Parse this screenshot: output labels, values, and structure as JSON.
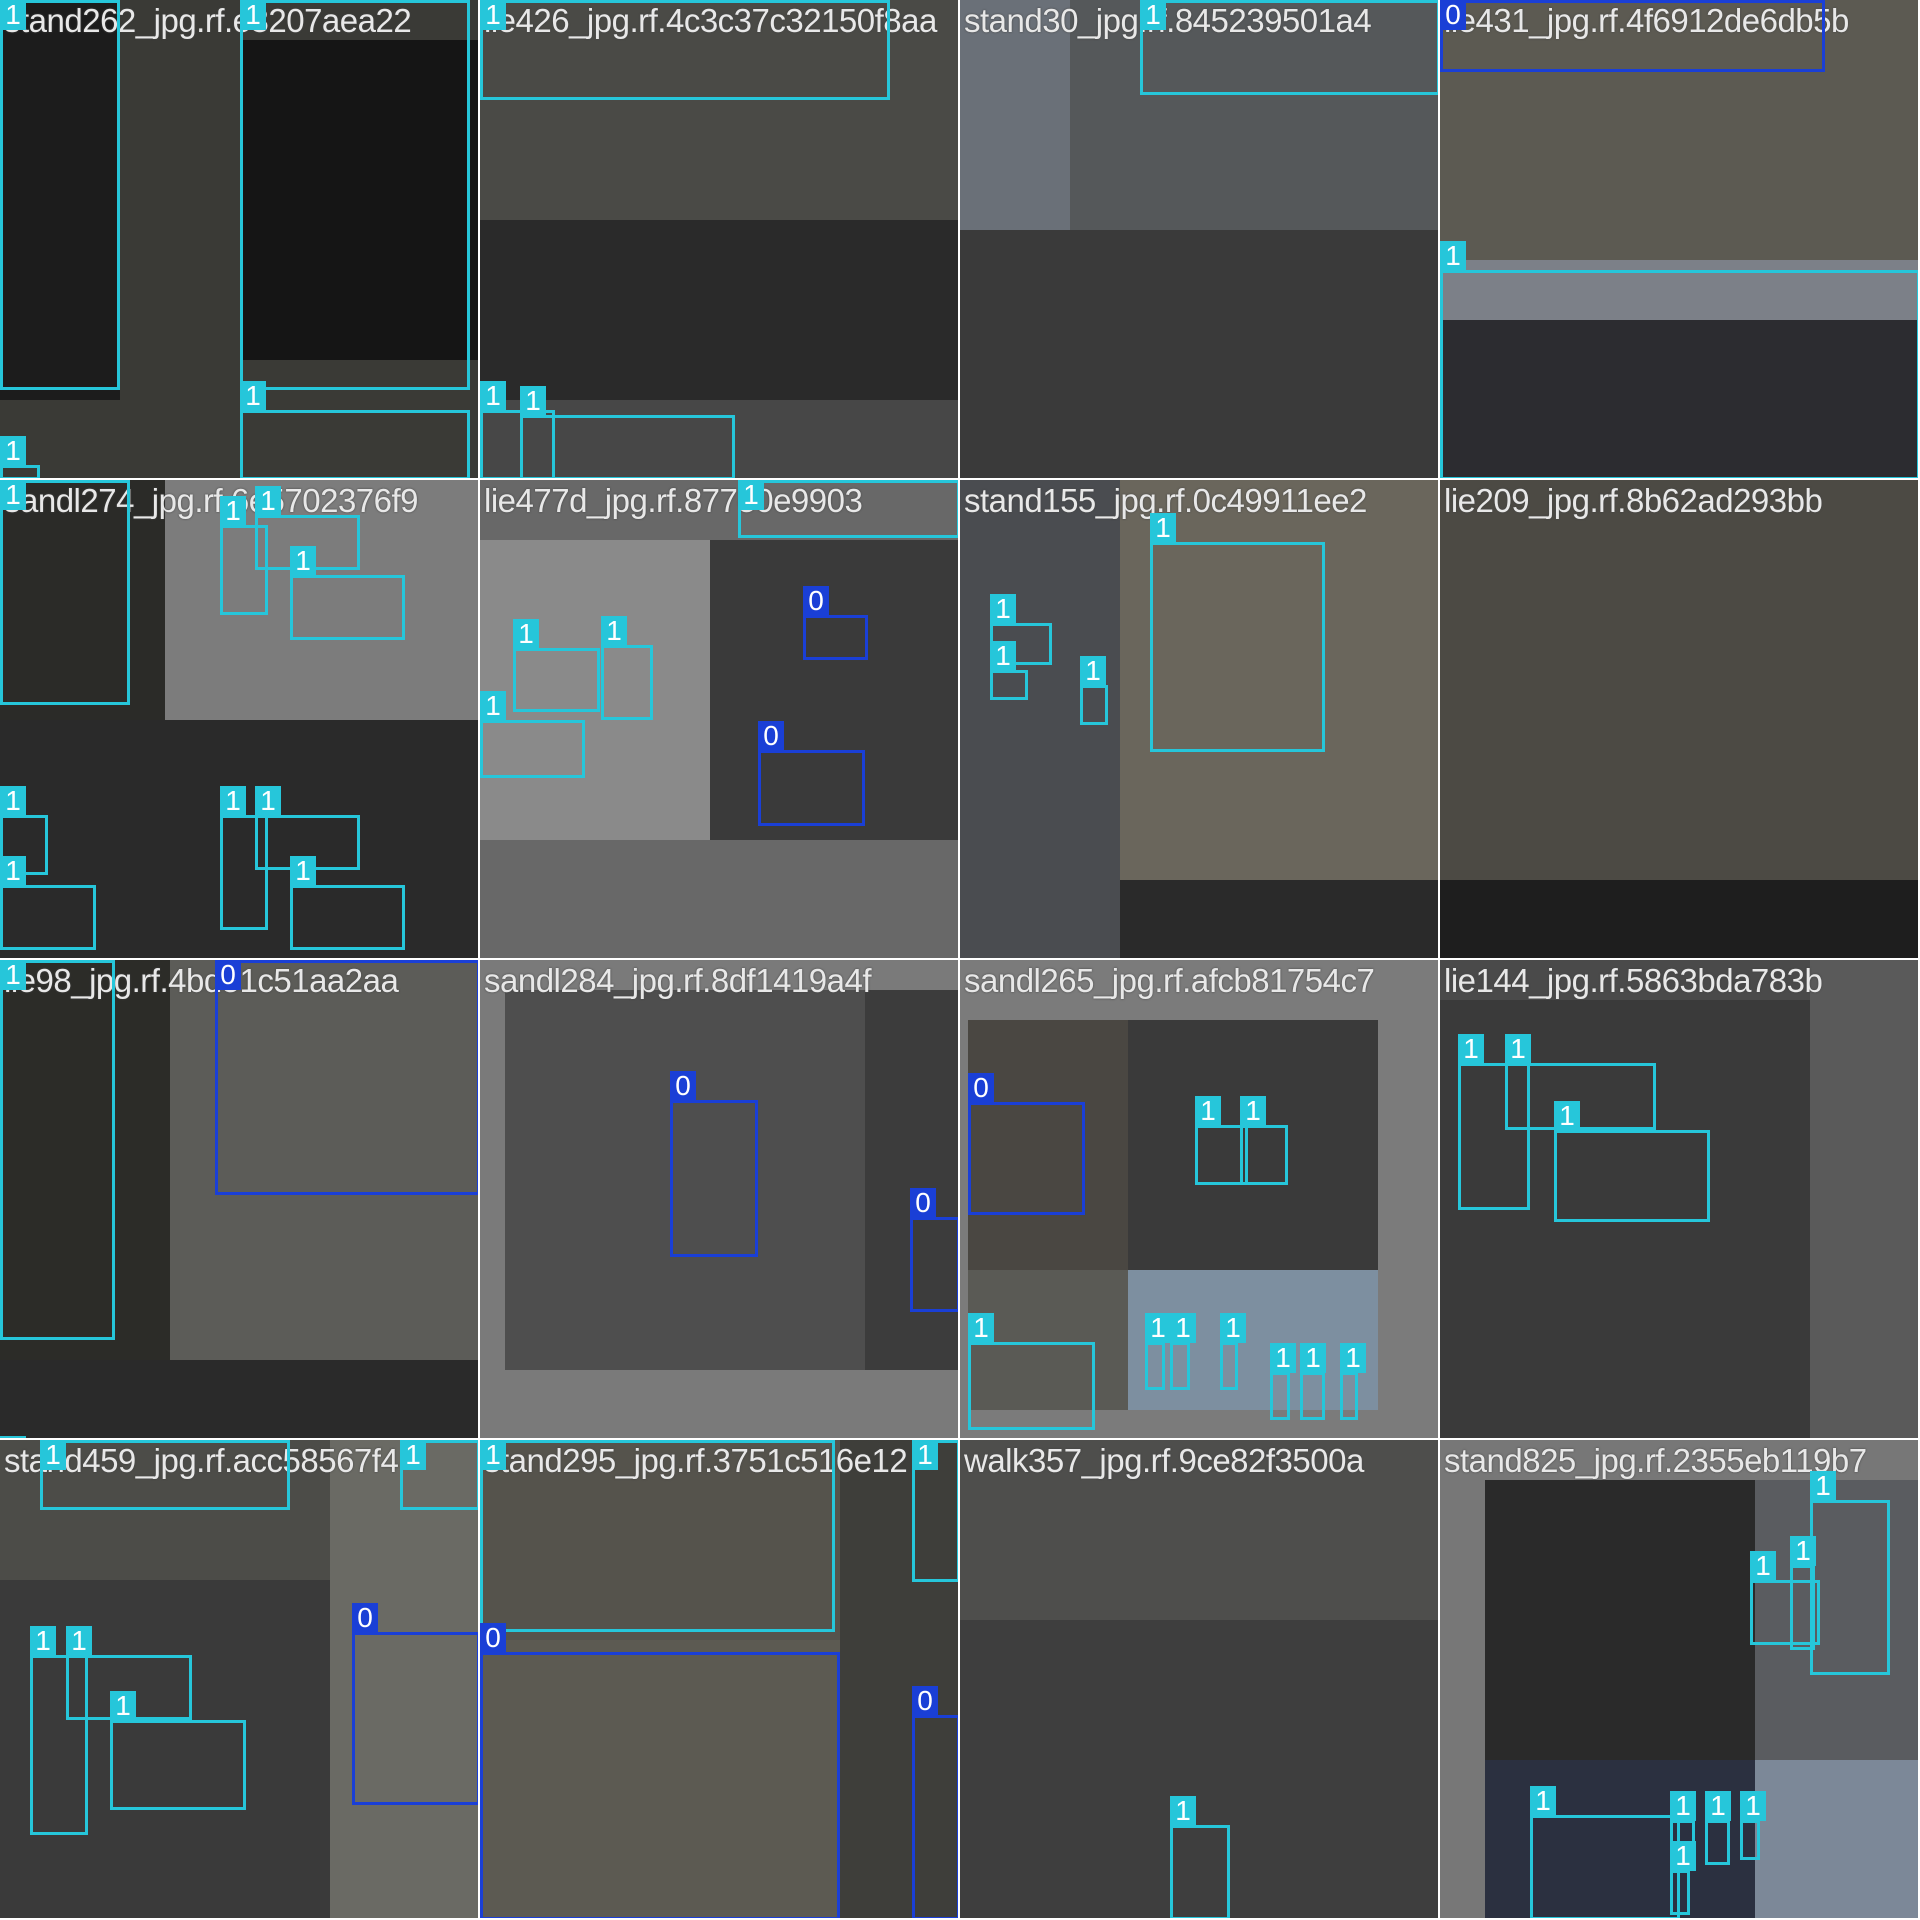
{
  "mosaic": {
    "class_colors": {
      "0": "#1a3fd6",
      "1": "#26c6da"
    },
    "tiles": [
      {
        "title": "stand262_jpg.rf.e3207aea22",
        "labels": [
          "1",
          "1",
          "1",
          "1"
        ]
      },
      {
        "title": "lie426_jpg.rf.4c3c37c32150f8aa",
        "labels": [
          "1",
          "1",
          "1",
          "1"
        ]
      },
      {
        "title": "stand30_jpg.rf.845239501a4",
        "labels": [
          "1"
        ]
      },
      {
        "title": "lie431_jpg.rf.4f6912de6db5b",
        "labels": [
          "0",
          "1"
        ]
      },
      {
        "title": "sandl274_jpg.rf.6e5702376f9",
        "labels": [
          "1",
          "1",
          "1",
          "1",
          "1",
          "1",
          "1",
          "1",
          "1"
        ]
      },
      {
        "title": "lie477d_jpg.rf.877e0e9903",
        "labels": [
          "1",
          "1",
          "1",
          "0",
          "0",
          "1"
        ]
      },
      {
        "title": "stand155_jpg.rf.0c49911ee2",
        "labels": [
          "1",
          "1",
          "1",
          "1"
        ]
      },
      {
        "title": "lie209_jpg.rf.8b62ad293bb",
        "labels": []
      },
      {
        "title": "lie98_jpg.rf.4bd51c51aa2aa",
        "labels": [
          "1",
          "0",
          "1"
        ]
      },
      {
        "title": "sandl284_jpg.rf.8df1419a4f",
        "labels": [
          "0",
          "0"
        ]
      },
      {
        "title": "sandl265_jpg.rf.afcb81754c7",
        "labels": [
          "0",
          "1",
          "1",
          "1",
          "1",
          "1",
          "1",
          "1",
          "1",
          "1"
        ]
      },
      {
        "title": "lie144_jpg.rf.5863bda783b",
        "labels": [
          "1",
          "1",
          "1"
        ]
      },
      {
        "title": "stand459_jpg.rf.acc58567f4",
        "labels": [
          "1",
          "1",
          "1",
          "1",
          "1",
          "0"
        ]
      },
      {
        "title": "stand295_jpg.rf.3751c516e12",
        "labels": [
          "1",
          "1",
          "0",
          "0"
        ]
      },
      {
        "title": "walk357_jpg.rf.9ce82f3500a",
        "labels": [
          "1"
        ]
      },
      {
        "title": "stand825_jpg.rf.2355eb119b7",
        "labels": [
          "1",
          "1",
          "1",
          "1",
          "1",
          "1",
          "1",
          "1"
        ]
      }
    ]
  }
}
